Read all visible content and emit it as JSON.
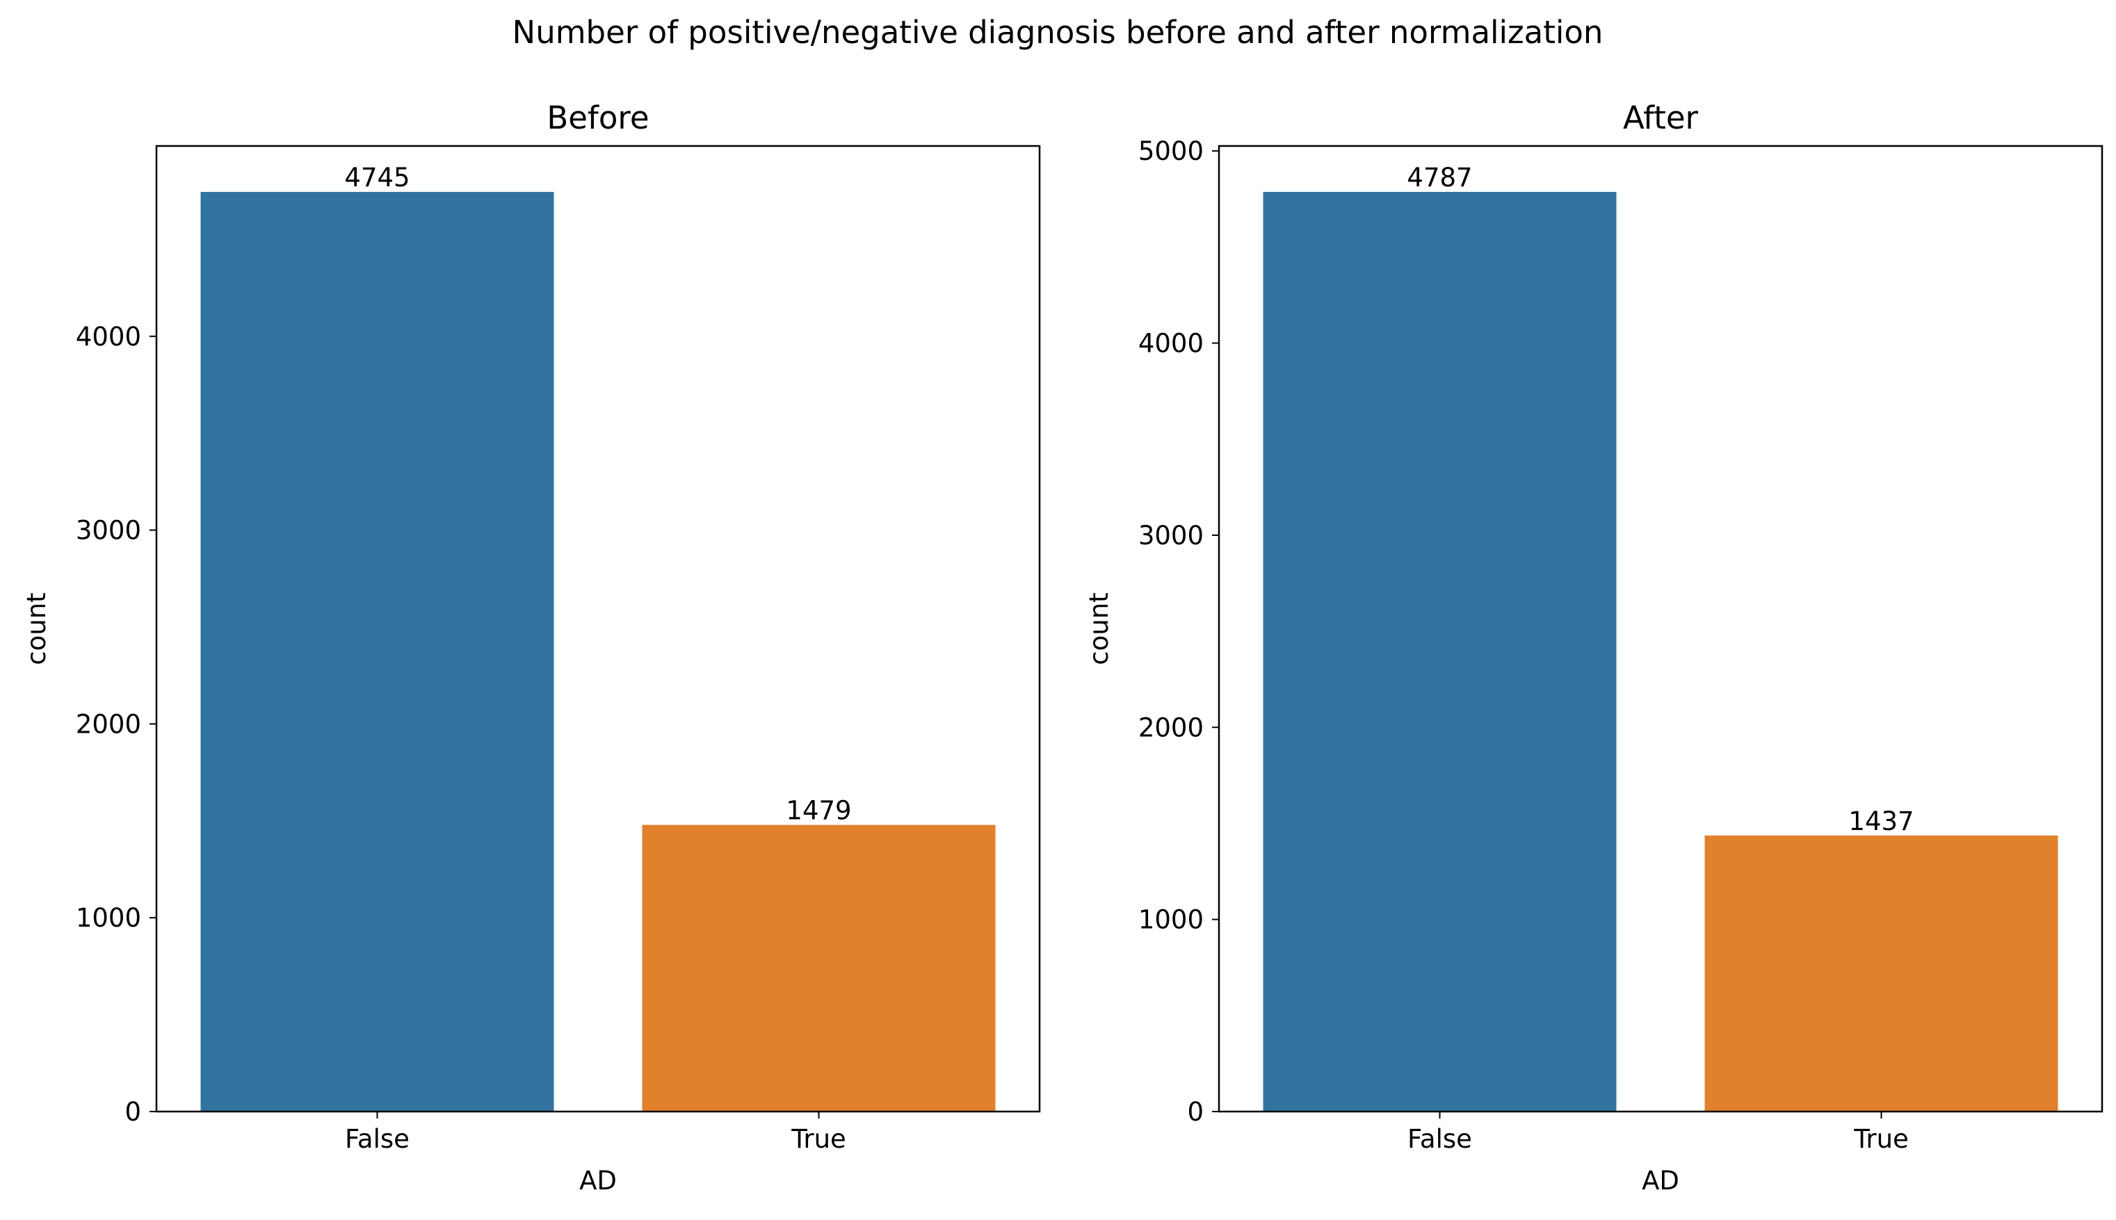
{
  "figure_title": "Number of positive/negative diagnosis before and after normalization",
  "chart_data": [
    {
      "type": "bar",
      "title": "Before",
      "xlabel": "AD",
      "ylabel": "count",
      "categories": [
        "False",
        "True"
      ],
      "values": [
        4745,
        1479
      ],
      "bar_labels": [
        "4745",
        "1479"
      ],
      "colors": [
        "#3274a1",
        "#e1812c"
      ],
      "ylim": [
        0,
        4982
      ],
      "yticks": [
        0,
        1000,
        2000,
        3000,
        4000
      ],
      "ytick_labels": [
        "0",
        "1000",
        "2000",
        "3000",
        "4000"
      ],
      "grid": false,
      "legend": "none"
    },
    {
      "type": "bar",
      "title": "After",
      "xlabel": "AD",
      "ylabel": "count",
      "categories": [
        "False",
        "True"
      ],
      "values": [
        4787,
        1437
      ],
      "bar_labels": [
        "4787",
        "1437"
      ],
      "colors": [
        "#3274a1",
        "#e1812c"
      ],
      "ylim": [
        0,
        5026
      ],
      "yticks": [
        0,
        1000,
        2000,
        3000,
        4000,
        5000
      ],
      "ytick_labels": [
        "0",
        "1000",
        "2000",
        "3000",
        "4000",
        "5000"
      ],
      "grid": false,
      "legend": "none"
    }
  ]
}
